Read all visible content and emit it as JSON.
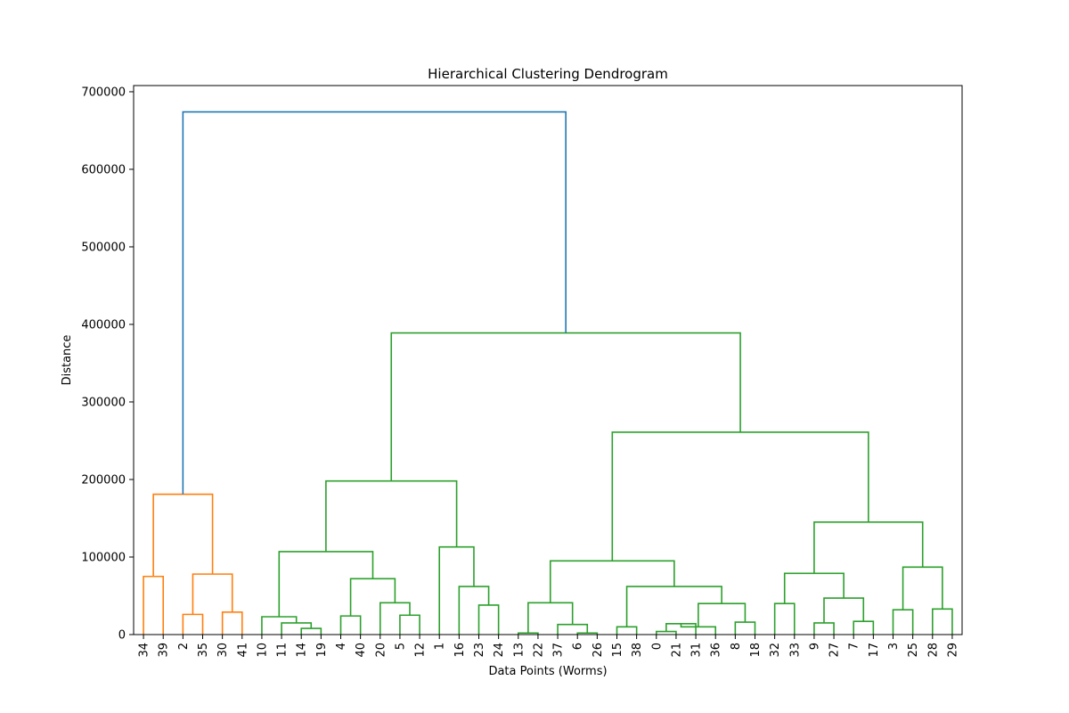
{
  "chart_data": {
    "type": "dendrogram",
    "title": "Hierarchical Clustering Dendrogram",
    "xlabel": "Data Points (Worms)",
    "ylabel": "Distance",
    "ylim": [
      0,
      708000
    ],
    "yticks": [
      0,
      100000,
      200000,
      300000,
      400000,
      500000,
      600000,
      700000
    ],
    "grid": false,
    "leaf_order": [
      "34",
      "39",
      "2",
      "35",
      "30",
      "41",
      "10",
      "11",
      "14",
      "19",
      "4",
      "40",
      "20",
      "5",
      "12",
      "1",
      "16",
      "23",
      "24",
      "13",
      "22",
      "37",
      "6",
      "26",
      "15",
      "38",
      "0",
      "21",
      "31",
      "36",
      "8",
      "18",
      "32",
      "33",
      "9",
      "27",
      "7",
      "17",
      "3",
      "25",
      "28",
      "29"
    ],
    "colors": {
      "above_threshold": "#1f77b4",
      "cluster_1": "#ff7f0e",
      "cluster_2": "#2ca02c"
    },
    "links": [
      {
        "id": "a1",
        "left": "34",
        "right": "39",
        "height": 75000,
        "color": "cluster_1"
      },
      {
        "id": "a2",
        "left": "2",
        "right": "35",
        "height": 26000,
        "color": "cluster_1"
      },
      {
        "id": "a3",
        "left": "30",
        "right": "41",
        "height": 29000,
        "color": "cluster_1"
      },
      {
        "id": "a4",
        "left": "a2",
        "right": "a3",
        "height": 78000,
        "color": "cluster_1"
      },
      {
        "id": "a5",
        "left": "a1",
        "right": "a4",
        "height": 181000,
        "color": "cluster_1"
      },
      {
        "id": "g1",
        "left": "14",
        "right": "19",
        "height": 8000,
        "color": "cluster_2"
      },
      {
        "id": "g2",
        "left": "11",
        "right": "g1",
        "height": 15000,
        "color": "cluster_2"
      },
      {
        "id": "g3",
        "left": "10",
        "right": "g2",
        "height": 23000,
        "color": "cluster_2"
      },
      {
        "id": "g4",
        "left": "4",
        "right": "40",
        "height": 24000,
        "color": "cluster_2"
      },
      {
        "id": "g5",
        "left": "5",
        "right": "12",
        "height": 25000,
        "color": "cluster_2"
      },
      {
        "id": "g6",
        "left": "20",
        "right": "g5",
        "height": 41000,
        "color": "cluster_2"
      },
      {
        "id": "g7",
        "left": "g4",
        "right": "g6",
        "height": 72000,
        "color": "cluster_2"
      },
      {
        "id": "g8",
        "left": "g3",
        "right": "g7",
        "height": 107000,
        "color": "cluster_2"
      },
      {
        "id": "g9",
        "left": "23",
        "right": "24",
        "height": 38000,
        "color": "cluster_2"
      },
      {
        "id": "g10",
        "left": "16",
        "right": "g9",
        "height": 62000,
        "color": "cluster_2"
      },
      {
        "id": "g11",
        "left": "1",
        "right": "g10",
        "height": 113000,
        "color": "cluster_2"
      },
      {
        "id": "g12",
        "left": "g8",
        "right": "g11",
        "height": 198000,
        "color": "cluster_2"
      },
      {
        "id": "g13",
        "left": "13",
        "right": "22",
        "height": 2000,
        "color": "cluster_2"
      },
      {
        "id": "g14",
        "left": "6",
        "right": "26",
        "height": 2000,
        "color": "cluster_2"
      },
      {
        "id": "g15",
        "left": "37",
        "right": "g14",
        "height": 13000,
        "color": "cluster_2"
      },
      {
        "id": "g16",
        "left": "g13",
        "right": "g15",
        "height": 41000,
        "color": "cluster_2"
      },
      {
        "id": "g17",
        "left": "15",
        "right": "38",
        "height": 10000,
        "color": "cluster_2"
      },
      {
        "id": "g18",
        "left": "0",
        "right": "21",
        "height": 4000,
        "color": "cluster_2"
      },
      {
        "id": "g19",
        "left": "g18",
        "right": "31",
        "height": 14000,
        "color": "cluster_2"
      },
      {
        "id": "g20",
        "left": "g19",
        "right": "36",
        "height": 10000,
        "color": "cluster_2"
      },
      {
        "id": "g21",
        "left": "8",
        "right": "18",
        "height": 16000,
        "color": "cluster_2"
      },
      {
        "id": "g22",
        "left": "g20",
        "right": "g21",
        "height": 40000,
        "color": "cluster_2"
      },
      {
        "id": "g23",
        "left": "g17",
        "right": "g22",
        "height": 62000,
        "color": "cluster_2"
      },
      {
        "id": "g24",
        "left": "g16",
        "right": "g23",
        "height": 95000,
        "color": "cluster_2"
      },
      {
        "id": "g25",
        "left": "32",
        "right": "33",
        "height": 40000,
        "color": "cluster_2"
      },
      {
        "id": "g26",
        "left": "9",
        "right": "27",
        "height": 15000,
        "color": "cluster_2"
      },
      {
        "id": "g27",
        "left": "7",
        "right": "17",
        "height": 17000,
        "color": "cluster_2"
      },
      {
        "id": "g28",
        "left": "g26",
        "right": "g27",
        "height": 47000,
        "color": "cluster_2"
      },
      {
        "id": "g29",
        "left": "g25",
        "right": "g28",
        "height": 79000,
        "color": "cluster_2"
      },
      {
        "id": "g30",
        "left": "3",
        "right": "25",
        "height": 32000,
        "color": "cluster_2"
      },
      {
        "id": "g31",
        "left": "28",
        "right": "29",
        "height": 33000,
        "color": "cluster_2"
      },
      {
        "id": "g32",
        "left": "g30",
        "right": "g31",
        "height": 87000,
        "color": "cluster_2"
      },
      {
        "id": "g33",
        "left": "g29",
        "right": "g32",
        "height": 145000,
        "color": "cluster_2"
      },
      {
        "id": "g34",
        "left": "g24",
        "right": "g33",
        "height": 261000,
        "color": "cluster_2"
      },
      {
        "id": "g35",
        "left": "g12",
        "right": "g34",
        "height": 389000,
        "color": "cluster_2"
      },
      {
        "id": "root",
        "left": "a5",
        "right": "g35",
        "height": 674000,
        "color": "above_threshold"
      }
    ]
  }
}
